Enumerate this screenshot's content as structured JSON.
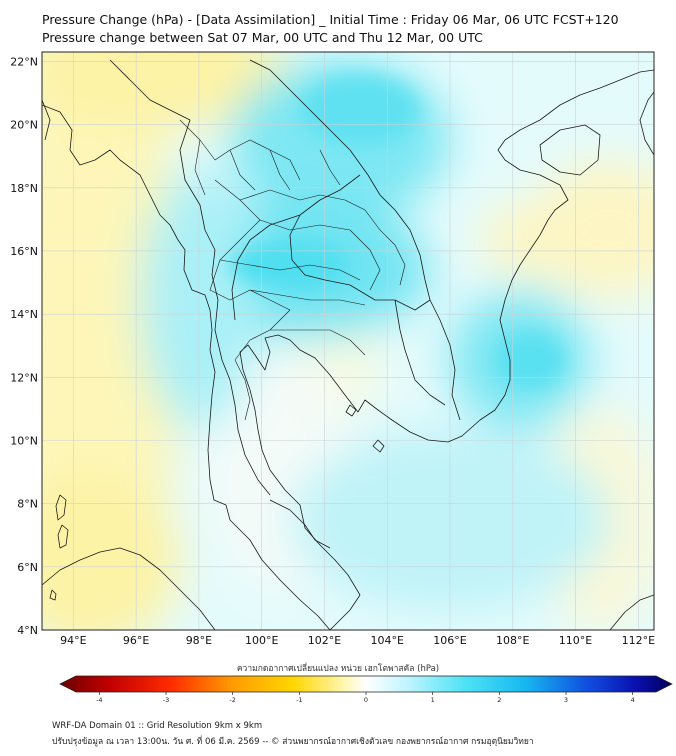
{
  "header": {
    "title_line1": "Pressure Change (hPa) - [Data Assimilation] _ Initial Time : Friday 06 Mar, 06 UTC FCST+120",
    "title_line2": "Pressure change between Sat 07 Mar, 00 UTC and Thu 12 Mar, 00 UTC"
  },
  "map": {
    "lat_labels": [
      "22°N",
      "20°N",
      "18°N",
      "16°N",
      "14°N",
      "12°N",
      "10°N",
      "8°N",
      "6°N",
      "4°N"
    ],
    "lon_labels": [
      "94°E",
      "96°E",
      "98°E",
      "100°E",
      "102°E",
      "104°E",
      "106°E",
      "108°E",
      "110°E",
      "112°E"
    ],
    "lat_values": [
      22,
      20,
      18,
      16,
      14,
      12,
      10,
      8,
      6,
      4
    ],
    "lon_values": [
      94,
      96,
      98,
      100,
      102,
      104,
      106,
      108,
      110,
      112
    ],
    "extent": {
      "lon_min": 93,
      "lon_max": 112.5,
      "lat_min": 4,
      "lat_max": 22.3
    },
    "colors": {
      "decrease": "#fff3a0",
      "neutral": "#f6fbff",
      "increase": "#4fe0f0",
      "strong_increase": "#2ad4ee"
    }
  },
  "colorbar": {
    "label": "ความกดอากาศเปลี่ยนแปลง หน่วย เฮกโตพาสคัล (hPa)",
    "ticks": [
      "-4",
      "-3",
      "-2",
      "-1",
      "0",
      "1",
      "2",
      "3",
      "4"
    ],
    "tick_values": [
      -4,
      -3,
      -2,
      -1,
      0,
      1,
      2,
      3,
      4
    ]
  },
  "footer": {
    "line1": "WRF-DA Domain 01 :: Grid Resolution 9km x 9km",
    "line2": "ปรับปรุงข้อมูล ณ เวลา 13:00น. วัน ศ. ที่ 06 มี.ค. 2569 -- © ส่วนพยากรณ์อากาศเชิงตัวเลข กองพยากรณ์อากาศ กรมอุตุนิยมวิทยา"
  }
}
